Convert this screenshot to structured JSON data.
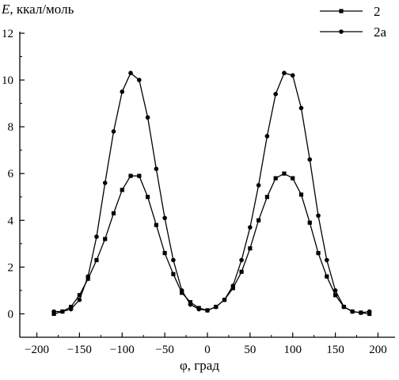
{
  "chart_data": {
    "type": "line",
    "title": "",
    "ylabel_symbol": "E",
    "ylabel_unit": ", ккал/моль",
    "xlabel": "φ, град",
    "xlim": [
      -220,
      220
    ],
    "ylim": [
      -1,
      12
    ],
    "xticks": [
      -200,
      -150,
      -100,
      -50,
      0,
      50,
      100,
      150,
      200
    ],
    "yticks": [
      0,
      2,
      4,
      6,
      8,
      10,
      12
    ],
    "xtick_labels": [
      "−200",
      "−150",
      "−100",
      "−50",
      "0",
      "50",
      "100",
      "150",
      "200"
    ],
    "ytick_labels": [
      "0",
      "2",
      "4",
      "6",
      "8",
      "10",
      "12"
    ],
    "legend_position": "top-right",
    "series": [
      {
        "name": "2",
        "marker": "square",
        "x": [
          -180,
          -170,
          -160,
          -150,
          -140,
          -130,
          -120,
          -110,
          -100,
          -90,
          -80,
          -70,
          -60,
          -50,
          -40,
          -30,
          -20,
          -10,
          0,
          10,
          20,
          30,
          40,
          50,
          60,
          70,
          80,
          90,
          100,
          110,
          120,
          130,
          140,
          150,
          160,
          170,
          180,
          190
        ],
        "y": [
          0.0,
          0.1,
          0.3,
          0.8,
          1.5,
          2.3,
          3.2,
          4.3,
          5.3,
          5.9,
          5.9,
          5.0,
          3.8,
          2.6,
          1.7,
          0.9,
          0.5,
          0.25,
          0.15,
          0.3,
          0.6,
          1.1,
          1.8,
          2.8,
          4.0,
          5.0,
          5.8,
          6.0,
          5.8,
          5.1,
          3.9,
          2.6,
          1.6,
          0.8,
          0.3,
          0.1,
          0.05,
          0.0
        ]
      },
      {
        "name": "2а",
        "marker": "circle",
        "x": [
          -180,
          -170,
          -160,
          -150,
          -140,
          -130,
          -120,
          -110,
          -100,
          -90,
          -80,
          -70,
          -60,
          -50,
          -40,
          -30,
          -20,
          -10,
          0,
          10,
          20,
          30,
          40,
          50,
          60,
          70,
          80,
          90,
          100,
          110,
          120,
          130,
          140,
          150,
          160,
          170,
          180,
          190
        ],
        "y": [
          0.1,
          0.1,
          0.2,
          0.6,
          1.6,
          3.3,
          5.6,
          7.8,
          9.5,
          10.3,
          10.0,
          8.4,
          6.2,
          4.1,
          2.3,
          1.0,
          0.4,
          0.2,
          0.15,
          0.3,
          0.6,
          1.2,
          2.3,
          3.7,
          5.5,
          7.6,
          9.4,
          10.3,
          10.2,
          8.8,
          6.6,
          4.2,
          2.3,
          1.0,
          0.3,
          0.1,
          0.05,
          0.1
        ]
      }
    ]
  }
}
